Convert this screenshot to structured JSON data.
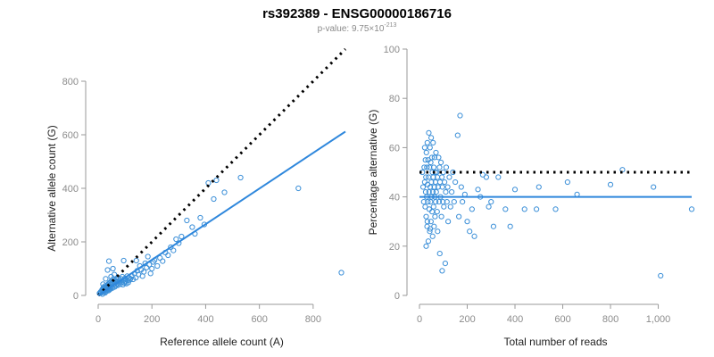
{
  "title": "rs392389 - ENSG00000186716",
  "subtitle": {
    "prefix": "p-value: 9.75",
    "times": "×",
    "base": "10",
    "exponent": "-213"
  },
  "colors": {
    "points": "#3b8fd8",
    "fit_line": "#2e87dc",
    "reference_line": "#000000",
    "axis": "#9a9a9a"
  },
  "chart_data": [
    {
      "type": "scatter",
      "xlabel": "Reference allele count (A)",
      "ylabel": "Alternative allele count (G)",
      "xlim": [
        0,
        920
      ],
      "ylim": [
        0,
        800
      ],
      "xticks": [
        0,
        200,
        400,
        600,
        800
      ],
      "xtick_labels": [
        "0",
        "200",
        "400",
        "600",
        "800"
      ],
      "yticks": [
        0,
        200,
        400,
        600,
        800
      ],
      "ytick_labels": [
        "0",
        "200",
        "400",
        "600",
        "800"
      ],
      "reference_line": {
        "style": "dotted",
        "points": [
          [
            0,
            0
          ],
          [
            920,
            920
          ]
        ]
      },
      "fit_line": {
        "style": "solid",
        "points": [
          [
            0,
            0
          ],
          [
            920,
            612
          ]
        ]
      },
      "points": [
        [
          5,
          8
        ],
        [
          8,
          12
        ],
        [
          10,
          14
        ],
        [
          12,
          10
        ],
        [
          14,
          18
        ],
        [
          15,
          22
        ],
        [
          16,
          5
        ],
        [
          18,
          25
        ],
        [
          20,
          30
        ],
        [
          20,
          16
        ],
        [
          22,
          12
        ],
        [
          23,
          20
        ],
        [
          24,
          28
        ],
        [
          25,
          35
        ],
        [
          26,
          10
        ],
        [
          27,
          18
        ],
        [
          28,
          24
        ],
        [
          29,
          30
        ],
        [
          30,
          15
        ],
        [
          31,
          22
        ],
        [
          32,
          34
        ],
        [
          33,
          28
        ],
        [
          34,
          38
        ],
        [
          35,
          20
        ],
        [
          36,
          25
        ],
        [
          37,
          42
        ],
        [
          38,
          32
        ],
        [
          39,
          18
        ],
        [
          40,
          26
        ],
        [
          41,
          45
        ],
        [
          42,
          36
        ],
        [
          43,
          22
        ],
        [
          44,
          48
        ],
        [
          45,
          30
        ],
        [
          46,
          40
        ],
        [
          47,
          25
        ],
        [
          48,
          52
        ],
        [
          50,
          35
        ],
        [
          52,
          45
        ],
        [
          54,
          28
        ],
        [
          55,
          60
        ],
        [
          56,
          38
        ],
        [
          58,
          50
        ],
        [
          60,
          42
        ],
        [
          62,
          32
        ],
        [
          64,
          55
        ],
        [
          65,
          48
        ],
        [
          66,
          36
        ],
        [
          68,
          60
        ],
        [
          70,
          44
        ],
        [
          72,
          52
        ],
        [
          74,
          38
        ],
        [
          75,
          65
        ],
        [
          78,
          48
        ],
        [
          80,
          56
        ],
        [
          82,
          42
        ],
        [
          85,
          62
        ],
        [
          88,
          50
        ],
        [
          90,
          70
        ],
        [
          92,
          40
        ],
        [
          95,
          58
        ],
        [
          98,
          46
        ],
        [
          100,
          64
        ],
        [
          102,
          52
        ],
        [
          105,
          44
        ],
        [
          108,
          72
        ],
        [
          110,
          56
        ],
        [
          112,
          48
        ],
        [
          115,
          66
        ],
        [
          118,
          58
        ],
        [
          120,
          62
        ],
        [
          125,
          74
        ],
        [
          130,
          60
        ],
        [
          135,
          82
        ],
        [
          140,
          66
        ],
        [
          142,
          130
        ],
        [
          145,
          92
        ],
        [
          150,
          78
        ],
        [
          155,
          110
        ],
        [
          160,
          96
        ],
        [
          165,
          72
        ],
        [
          170,
          88
        ],
        [
          175,
          120
        ],
        [
          180,
          104
        ],
        [
          185,
          145
        ],
        [
          190,
          115
        ],
        [
          195,
          82
        ],
        [
          200,
          100
        ],
        [
          205,
          125
        ],
        [
          210,
          132
        ],
        [
          220,
          110
        ],
        [
          230,
          140
        ],
        [
          240,
          128
        ],
        [
          250,
          160
        ],
        [
          260,
          150
        ],
        [
          270,
          180
        ],
        [
          280,
          168
        ],
        [
          290,
          210
        ],
        [
          300,
          195
        ],
        [
          310,
          220
        ],
        [
          330,
          280
        ],
        [
          350,
          255
        ],
        [
          360,
          230
        ],
        [
          380,
          290
        ],
        [
          395,
          265
        ],
        [
          410,
          420
        ],
        [
          430,
          360
        ],
        [
          440,
          430
        ],
        [
          470,
          385
        ],
        [
          530,
          440
        ],
        [
          745,
          400
        ],
        [
          905,
          85
        ],
        [
          40,
          128
        ],
        [
          35,
          95
        ],
        [
          28,
          62
        ],
        [
          18,
          42
        ],
        [
          55,
          100
        ],
        [
          60,
          78
        ],
        [
          48,
          70
        ],
        [
          95,
          130
        ]
      ]
    },
    {
      "type": "scatter",
      "xlabel": "Total number of reads",
      "ylabel": "Percentage alternative (G)",
      "xlim": [
        0,
        1140
      ],
      "ylim": [
        0,
        100
      ],
      "xticks": [
        0,
        200,
        400,
        600,
        800,
        1000
      ],
      "xtick_labels": [
        "0",
        "200",
        "400",
        "600",
        "800",
        "1,000"
      ],
      "yticks": [
        0,
        20,
        40,
        60,
        80,
        100
      ],
      "ytick_labels": [
        "0",
        "20",
        "40",
        "60",
        "80",
        "100"
      ],
      "reference_line": {
        "style": "dotted",
        "y": 50
      },
      "fit_line": {
        "style": "solid",
        "y": 40
      },
      "points": [
        [
          12,
          50
        ],
        [
          15,
          44
        ],
        [
          18,
          38
        ],
        [
          20,
          52
        ],
        [
          22,
          46
        ],
        [
          24,
          36
        ],
        [
          25,
          55
        ],
        [
          26,
          42
        ],
        [
          27,
          48
        ],
        [
          28,
          32
        ],
        [
          29,
          58
        ],
        [
          30,
          40
        ],
        [
          31,
          52
        ],
        [
          32,
          28
        ],
        [
          33,
          62
        ],
        [
          34,
          45
        ],
        [
          35,
          38
        ],
        [
          36,
          55
        ],
        [
          37,
          22
        ],
        [
          38,
          48
        ],
        [
          39,
          66
        ],
        [
          40,
          42
        ],
        [
          41,
          35
        ],
        [
          42,
          52
        ],
        [
          43,
          26
        ],
        [
          44,
          60
        ],
        [
          45,
          44
        ],
        [
          46,
          38
        ],
        [
          47,
          54
        ],
        [
          48,
          30
        ],
        [
          49,
          64
        ],
        [
          50,
          46
        ],
        [
          51,
          40
        ],
        [
          52,
          56
        ],
        [
          53,
          34
        ],
        [
          54,
          50
        ],
        [
          55,
          24
        ],
        [
          56,
          42
        ],
        [
          57,
          62
        ],
        [
          58,
          48
        ],
        [
          59,
          36
        ],
        [
          60,
          52
        ],
        [
          61,
          28
        ],
        [
          62,
          44
        ],
        [
          63,
          56
        ],
        [
          64,
          40
        ],
        [
          65,
          32
        ],
        [
          66,
          50
        ],
        [
          67,
          46
        ],
        [
          68,
          38
        ],
        [
          69,
          58
        ],
        [
          70,
          42
        ],
        [
          72,
          50
        ],
        [
          74,
          34
        ],
        [
          75,
          48
        ],
        [
          76,
          26
        ],
        [
          78,
          44
        ],
        [
          80,
          56
        ],
        [
          82,
          38
        ],
        [
          84,
          52
        ],
        [
          85,
          17
        ],
        [
          86,
          46
        ],
        [
          88,
          40
        ],
        [
          90,
          54
        ],
        [
          92,
          32
        ],
        [
          94,
          48
        ],
        [
          95,
          10
        ],
        [
          96,
          44
        ],
        [
          98,
          38
        ],
        [
          100,
          50
        ],
        [
          102,
          36
        ],
        [
          105,
          46
        ],
        [
          108,
          13
        ],
        [
          110,
          42
        ],
        [
          112,
          52
        ],
        [
          115,
          38
        ],
        [
          118,
          44
        ],
        [
          120,
          30
        ],
        [
          125,
          48
        ],
        [
          130,
          36
        ],
        [
          135,
          42
        ],
        [
          140,
          50
        ],
        [
          145,
          38
        ],
        [
          150,
          46
        ],
        [
          160,
          65
        ],
        [
          165,
          32
        ],
        [
          170,
          73
        ],
        [
          175,
          44
        ],
        [
          180,
          38
        ],
        [
          190,
          41
        ],
        [
          200,
          30
        ],
        [
          210,
          26
        ],
        [
          220,
          35
        ],
        [
          230,
          24
        ],
        [
          245,
          43
        ],
        [
          255,
          40
        ],
        [
          265,
          49
        ],
        [
          280,
          48
        ],
        [
          290,
          36
        ],
        [
          300,
          38
        ],
        [
          310,
          28
        ],
        [
          330,
          48
        ],
        [
          360,
          35
        ],
        [
          380,
          28
        ],
        [
          400,
          43
        ],
        [
          440,
          35
        ],
        [
          490,
          35
        ],
        [
          500,
          44
        ],
        [
          570,
          35
        ],
        [
          620,
          46
        ],
        [
          660,
          41
        ],
        [
          800,
          45
        ],
        [
          850,
          51
        ],
        [
          980,
          44
        ],
        [
          1010,
          8
        ],
        [
          1140,
          35
        ],
        [
          22,
          60
        ],
        [
          28,
          20
        ],
        [
          33,
          30
        ],
        [
          45,
          27
        ]
      ]
    }
  ]
}
